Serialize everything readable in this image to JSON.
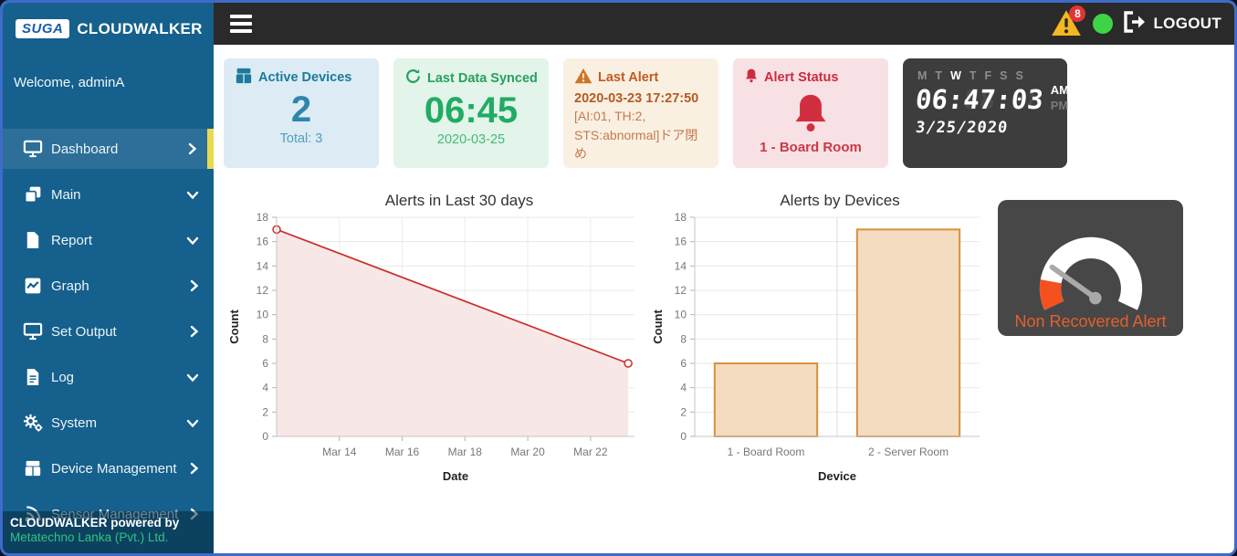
{
  "sidebar": {
    "logo_badge": "SUGA",
    "brand": "CLOUDWALKER",
    "welcome": "Welcome, adminA",
    "items": [
      {
        "label": "Dashboard",
        "icon": "monitor-icon",
        "chevron": "right",
        "active": true
      },
      {
        "label": "Main",
        "icon": "layers-icon",
        "chevron": "down",
        "active": false
      },
      {
        "label": "Report",
        "icon": "file-icon",
        "chevron": "down",
        "active": false
      },
      {
        "label": "Graph",
        "icon": "chart-line-icon",
        "chevron": "right",
        "active": false
      },
      {
        "label": "Set Output",
        "icon": "monitor-icon",
        "chevron": "right",
        "active": false
      },
      {
        "label": "Log",
        "icon": "file-text-icon",
        "chevron": "down",
        "active": false
      },
      {
        "label": "System",
        "icon": "gears-icon",
        "chevron": "down",
        "active": false
      },
      {
        "label": "Device Management",
        "icon": "box-icon",
        "chevron": "right",
        "active": false
      },
      {
        "label": "Sensor Management",
        "icon": "broadcast-icon",
        "chevron": "right",
        "active": false
      }
    ],
    "footer_line1": "CLOUDWALKER powered by",
    "footer_line2": "Metatechno Lanka (Pvt.) Ltd."
  },
  "topbar": {
    "menu_icon": "hamburger-icon",
    "alert_count": "8",
    "status_color": "#3fd447",
    "logout_label": "LOGOUT"
  },
  "cards": {
    "active_devices": {
      "icon": "box-icon",
      "title": "Active Devices",
      "value": "2",
      "subtitle": "Total: 3"
    },
    "last_synced": {
      "icon": "sync-icon",
      "title": "Last Data Synced",
      "value": "06:45",
      "subtitle": "2020-03-25"
    },
    "last_alert": {
      "icon": "warning-triangle-icon",
      "title": "Last Alert",
      "line1": "2020-03-23 17:27:50",
      "line2": "[AI:01, TH:2,",
      "line3": "STS:abnormal]ドア閉め"
    },
    "alert_status": {
      "icon": "bell-icon",
      "title": "Alert Status",
      "value": "1 - Board Room"
    }
  },
  "clock": {
    "days": [
      "M",
      "T",
      "W",
      "T",
      "F",
      "S",
      "S"
    ],
    "active_day_index": 2,
    "time": "06:47:03",
    "meridiem_options": [
      "AM",
      "PM"
    ],
    "active_meridiem": "AM",
    "date": "3/25/2020"
  },
  "gauge": {
    "label": "Non Recovered Alert",
    "accent_color": "#e2602e",
    "arc_color": "#ffffff",
    "zone_color": "#f4511e",
    "needle_color": "#a9a9a9",
    "bg_color": "#474747"
  },
  "chart_data": [
    {
      "type": "area",
      "title": "Alerts in Last 30 days",
      "xlabel": "Date",
      "ylabel": "Count",
      "ylim": [
        0,
        18
      ],
      "ytick_step": 2,
      "grid": true,
      "legend": "none",
      "x_domain": [
        12,
        23.4
      ],
      "x_ticks": [
        {
          "label": "Mar 14",
          "v": 14
        },
        {
          "label": "Mar 16",
          "v": 16
        },
        {
          "label": "Mar 18",
          "v": 18
        },
        {
          "label": "Mar 20",
          "v": 20
        },
        {
          "label": "Mar 22",
          "v": 22
        }
      ],
      "points": [
        {
          "label": "Mar 12",
          "v": 12,
          "y": 17
        },
        {
          "label": "Mar 23",
          "v": 23.2,
          "y": 6
        }
      ],
      "line_color": "#c9302c",
      "area_color": "#f8e7e7"
    },
    {
      "type": "bar",
      "title": "Alerts by Devices",
      "xlabel": "Device",
      "ylabel": "Count",
      "ylim": [
        0,
        18
      ],
      "ytick_step": 2,
      "grid": true,
      "legend": "none",
      "categories": [
        "1 - Board Room",
        "2 - Server Room"
      ],
      "values": [
        6,
        17
      ],
      "bar_fill": "#f3dcc0",
      "bar_border": "#d8903e"
    }
  ]
}
